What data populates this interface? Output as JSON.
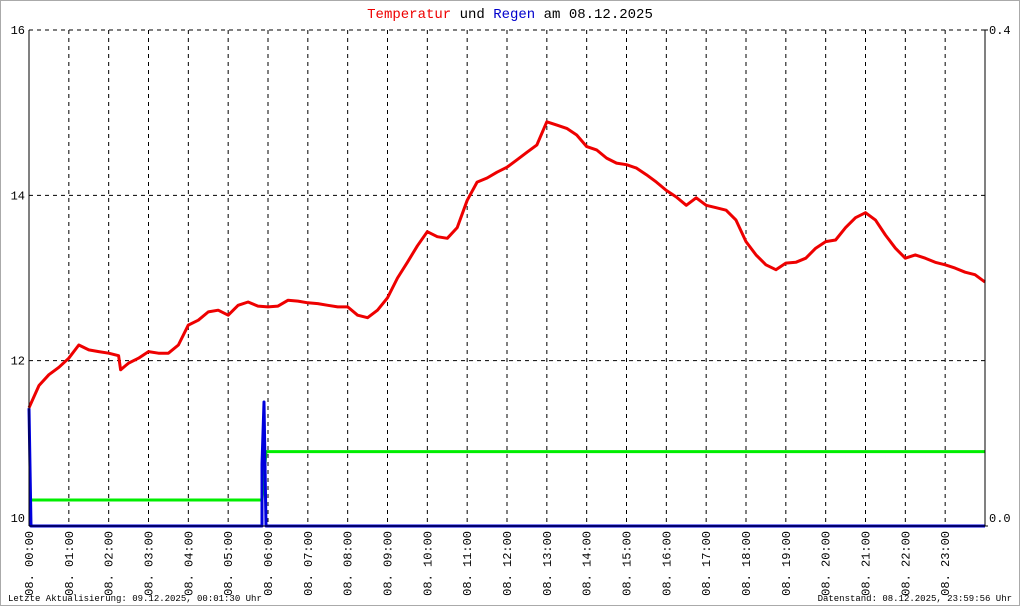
{
  "chart_data": {
    "type": "line",
    "title": [
      "Temperatur",
      "und",
      "Regen",
      "am 08.12.2025"
    ],
    "footer_left": "Letzte Aktualisierung: 09.12.2025, 00:01:30 Uhr",
    "footer_right": "Datenstand: 08.12.2025, 23:59:56 Uhr",
    "xlim": [
      0,
      24
    ],
    "xticks": [
      {
        "value": 0,
        "label": "08. 00:00"
      },
      {
        "value": 1,
        "label": "08. 01:00"
      },
      {
        "value": 2,
        "label": "08. 02:00"
      },
      {
        "value": 3,
        "label": "08. 03:00"
      },
      {
        "value": 4,
        "label": "08. 04:00"
      },
      {
        "value": 5,
        "label": "08. 05:00"
      },
      {
        "value": 6,
        "label": "08. 06:00"
      },
      {
        "value": 7,
        "label": "08. 07:00"
      },
      {
        "value": 8,
        "label": "08. 08:00"
      },
      {
        "value": 9,
        "label": "08. 09:00"
      },
      {
        "value": 10,
        "label": "08. 10:00"
      },
      {
        "value": 11,
        "label": "08. 11:00"
      },
      {
        "value": 12,
        "label": "08. 12:00"
      },
      {
        "value": 13,
        "label": "08. 13:00"
      },
      {
        "value": 14,
        "label": "08. 14:00"
      },
      {
        "value": 15,
        "label": "08. 15:00"
      },
      {
        "value": 16,
        "label": "08. 16:00"
      },
      {
        "value": 17,
        "label": "08. 17:00"
      },
      {
        "value": 18,
        "label": "08. 18:00"
      },
      {
        "value": 19,
        "label": "08. 19:00"
      },
      {
        "value": 20,
        "label": "08. 20:00"
      },
      {
        "value": 21,
        "label": "08. 21:00"
      },
      {
        "value": 22,
        "label": "08. 22:00"
      },
      {
        "value": 23,
        "label": "08. 23:00"
      }
    ],
    "ylim": [
      10,
      16
    ],
    "yticks": [
      10,
      12,
      14,
      16
    ],
    "y2lim": [
      0,
      0.4
    ],
    "y2ticks": [
      {
        "value": 0,
        "label": "0.0"
      },
      {
        "value": 0.4,
        "label": "0.4"
      }
    ],
    "grid": true,
    "series": [
      {
        "name": "Temperatur",
        "color": "#ee0000",
        "x": [
          0,
          0.25,
          0.5,
          0.75,
          1,
          1.25,
          1.5,
          1.75,
          2,
          2.25,
          2.3,
          2.5,
          2.75,
          3,
          3.25,
          3.5,
          3.75,
          4,
          4.25,
          4.5,
          4.75,
          5,
          5.25,
          5.5,
          5.75,
          6,
          6.25,
          6.5,
          6.75,
          7,
          7.25,
          7.5,
          7.75,
          8,
          8.25,
          8.5,
          8.75,
          9,
          9.25,
          9.5,
          9.75,
          10,
          10.25,
          10.5,
          10.75,
          11,
          11.25,
          11.5,
          11.75,
          12,
          12.25,
          12.5,
          12.75,
          13,
          13.25,
          13.5,
          13.75,
          14,
          14.25,
          14.5,
          14.75,
          15,
          15.25,
          15.5,
          15.75,
          16,
          16.25,
          16.5,
          16.75,
          17,
          17.25,
          17.5,
          17.75,
          18,
          18.25,
          18.5,
          18.75,
          19,
          19.25,
          19.5,
          19.75,
          20,
          20.25,
          20.5,
          20.75,
          21,
          21.25,
          21.5,
          21.75,
          22,
          22.25,
          22.5,
          22.75,
          23,
          23.25,
          23.5,
          23.75,
          24
        ],
        "values": [
          11.43,
          11.7,
          11.83,
          11.92,
          12.03,
          12.19,
          12.13,
          12.11,
          12.09,
          12.06,
          11.89,
          11.97,
          12.03,
          12.11,
          12.09,
          12.09,
          12.19,
          12.43,
          12.49,
          12.59,
          12.61,
          12.55,
          12.67,
          12.71,
          12.66,
          12.65,
          12.66,
          12.73,
          12.72,
          12.7,
          12.69,
          12.67,
          12.65,
          12.65,
          12.55,
          12.52,
          12.61,
          12.76,
          13.0,
          13.19,
          13.39,
          13.56,
          13.5,
          13.48,
          13.61,
          13.94,
          14.16,
          14.21,
          14.28,
          14.34,
          14.43,
          14.52,
          14.61,
          14.89,
          14.85,
          14.81,
          14.73,
          14.59,
          14.55,
          14.45,
          14.39,
          14.37,
          14.33,
          14.25,
          14.16,
          14.06,
          13.98,
          13.88,
          13.97,
          13.88,
          13.85,
          13.82,
          13.7,
          13.44,
          13.28,
          13.16,
          13.1,
          13.18,
          13.19,
          13.24,
          13.36,
          13.44,
          13.46,
          13.61,
          13.73,
          13.79,
          13.7,
          13.52,
          13.36,
          13.24,
          13.28,
          13.24,
          13.19,
          13.16,
          13.12,
          13.07,
          13.04,
          12.95
        ]
      },
      {
        "name": "Regen",
        "color": "#0000dd",
        "axis": "y2",
        "x": [
          0,
          0.05,
          5.85,
          5.85,
          5.9,
          5.95,
          24
        ],
        "values": [
          0.095,
          0,
          0,
          0.05,
          0.1,
          0,
          0
        ]
      },
      {
        "color": "#00ee00",
        "axis": "y2",
        "x": [
          0.05,
          5.85,
          5.95,
          24
        ],
        "values": [
          0.021,
          0.021,
          0.06,
          0.06
        ]
      }
    ]
  }
}
